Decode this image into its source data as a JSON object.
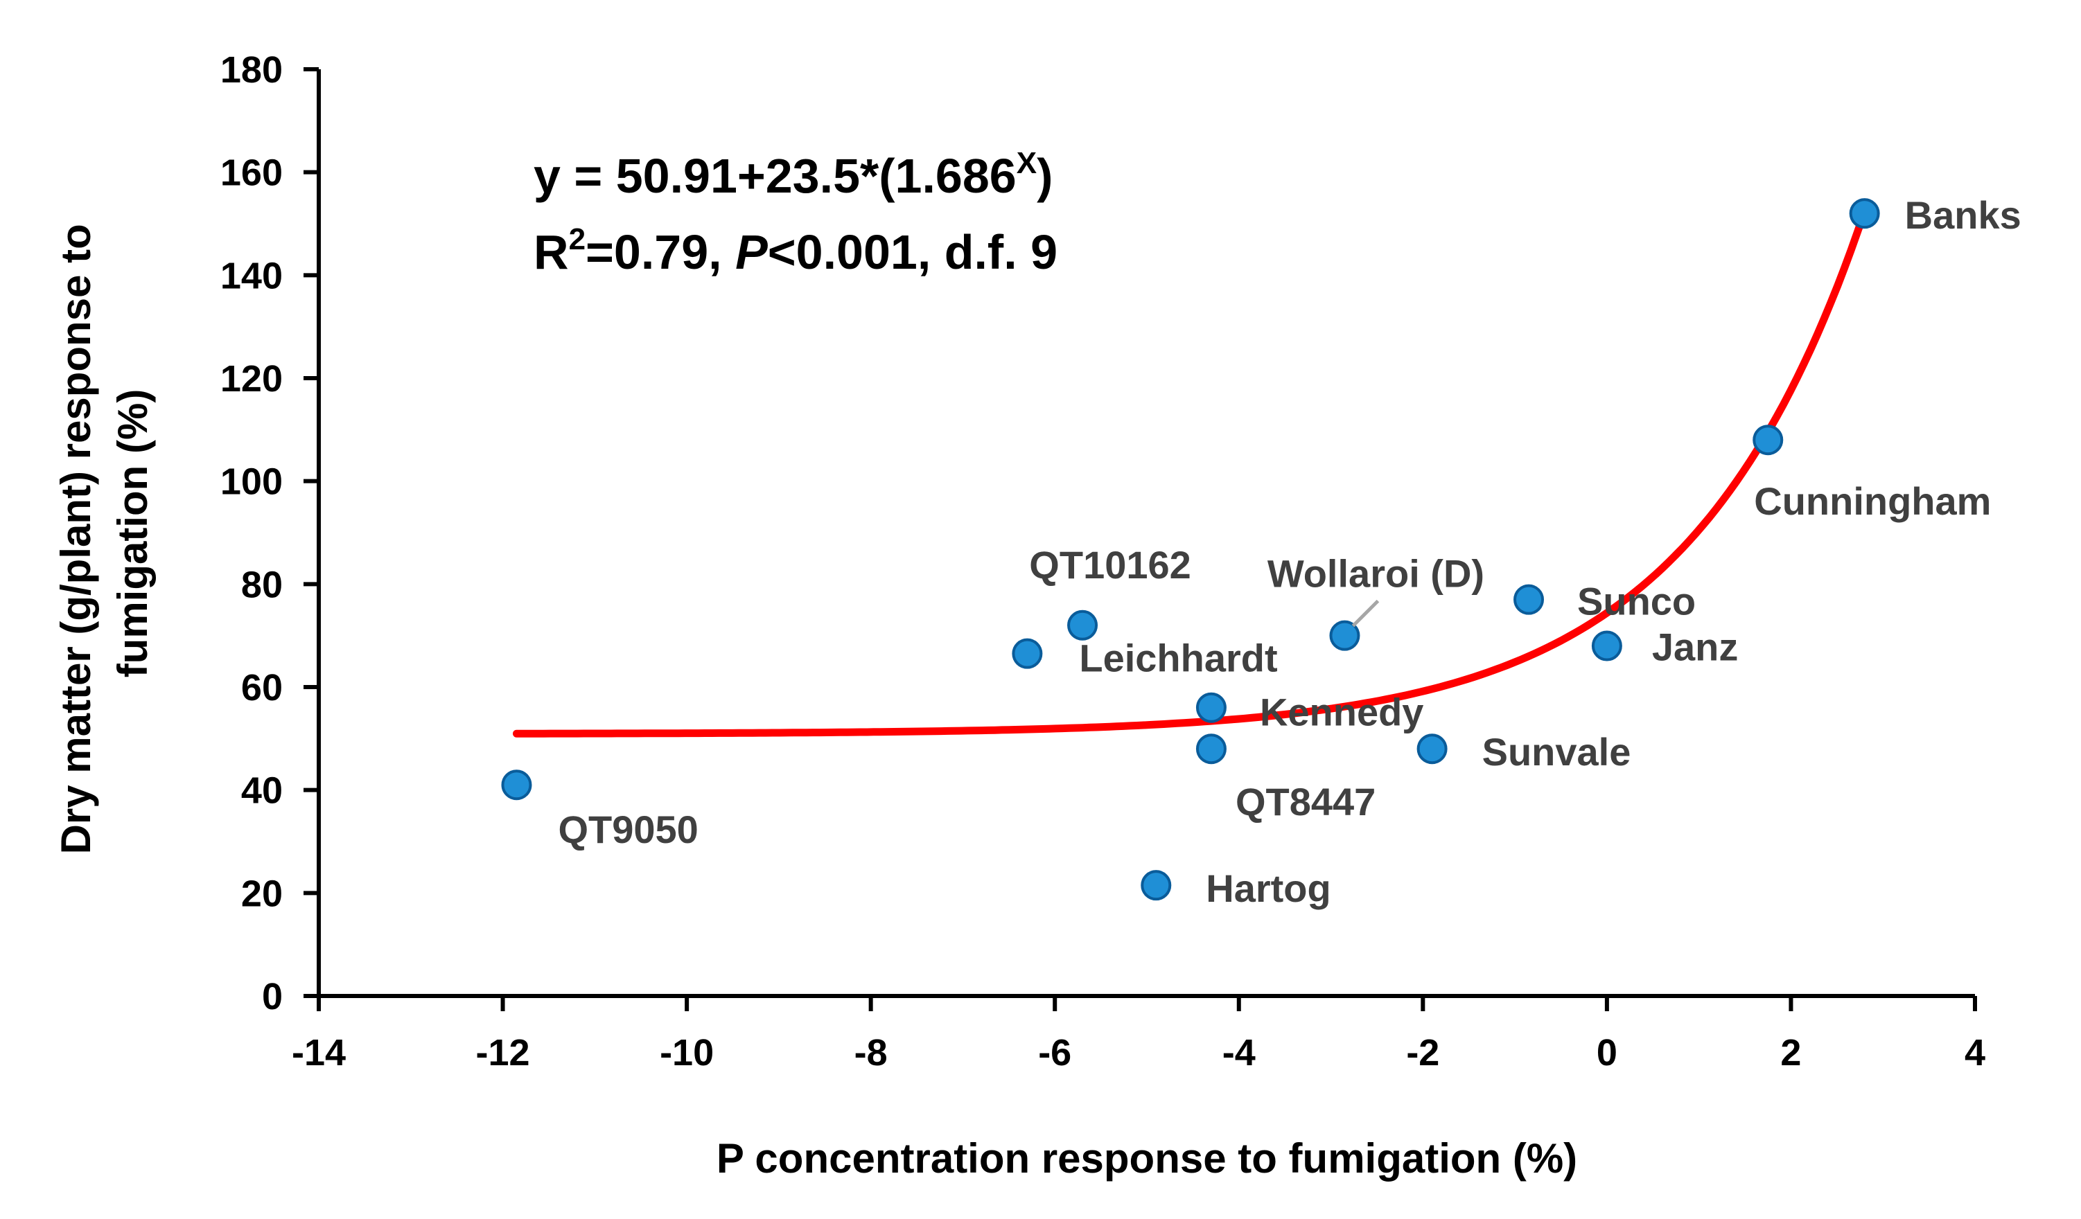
{
  "chart_data": {
    "type": "scatter",
    "title": "",
    "xlabel": "P concentration response to fumigation (%)",
    "ylabel_lines": [
      "Dry matter (g/plant) response to",
      "fumigation (%)"
    ],
    "xlim": [
      -14,
      4
    ],
    "ylim": [
      0,
      180
    ],
    "x_ticks": [
      -14,
      -12,
      -10,
      -8,
      -6,
      -4,
      -2,
      0,
      2,
      4
    ],
    "y_ticks": [
      0,
      20,
      40,
      60,
      80,
      100,
      120,
      140,
      160,
      180
    ],
    "grid": false,
    "equation": {
      "line1_prefix": "y = 50.91+23.5*(1.686",
      "line1_superscript": "X",
      "line1_suffix": ")",
      "line2_r": "R",
      "line2_r_superscript": "2",
      "line2_mid": "=0.79, ",
      "line2_p": "P",
      "line2_rest": "<0.001, d.f. 9"
    },
    "points": [
      {
        "name": "Banks",
        "x": 2.8,
        "y": 152
      },
      {
        "name": "Cunningham",
        "x": 1.75,
        "y": 108
      },
      {
        "name": "Sunco",
        "x": -0.85,
        "y": 77
      },
      {
        "name": "Janz",
        "x": 0.0,
        "y": 68
      },
      {
        "name": "Wollaroi (D)",
        "x": -2.85,
        "y": 70
      },
      {
        "name": "QT10162",
        "x": -5.7,
        "y": 72
      },
      {
        "name": "Leichhardt",
        "x": -6.3,
        "y": 66.5
      },
      {
        "name": "Kennedy",
        "x": -4.3,
        "y": 56
      },
      {
        "name": "QT8447",
        "x": -4.3,
        "y": 48
      },
      {
        "name": "Sunvale",
        "x": -1.9,
        "y": 48
      },
      {
        "name": "QT9050",
        "x": -11.85,
        "y": 41
      },
      {
        "name": "Hartog",
        "x": -4.9,
        "y": 21.5
      }
    ],
    "fit": {
      "type": "exponential",
      "a": 50.91,
      "b": 23.5,
      "base": 1.686,
      "x_range": [
        -11.85,
        2.8
      ]
    },
    "colors": {
      "point_fill": "#1f8fd6",
      "point_stroke": "#0a5c9a",
      "fit_line": "#ff0000",
      "label_text": "#404040",
      "axis": "#000000"
    }
  }
}
